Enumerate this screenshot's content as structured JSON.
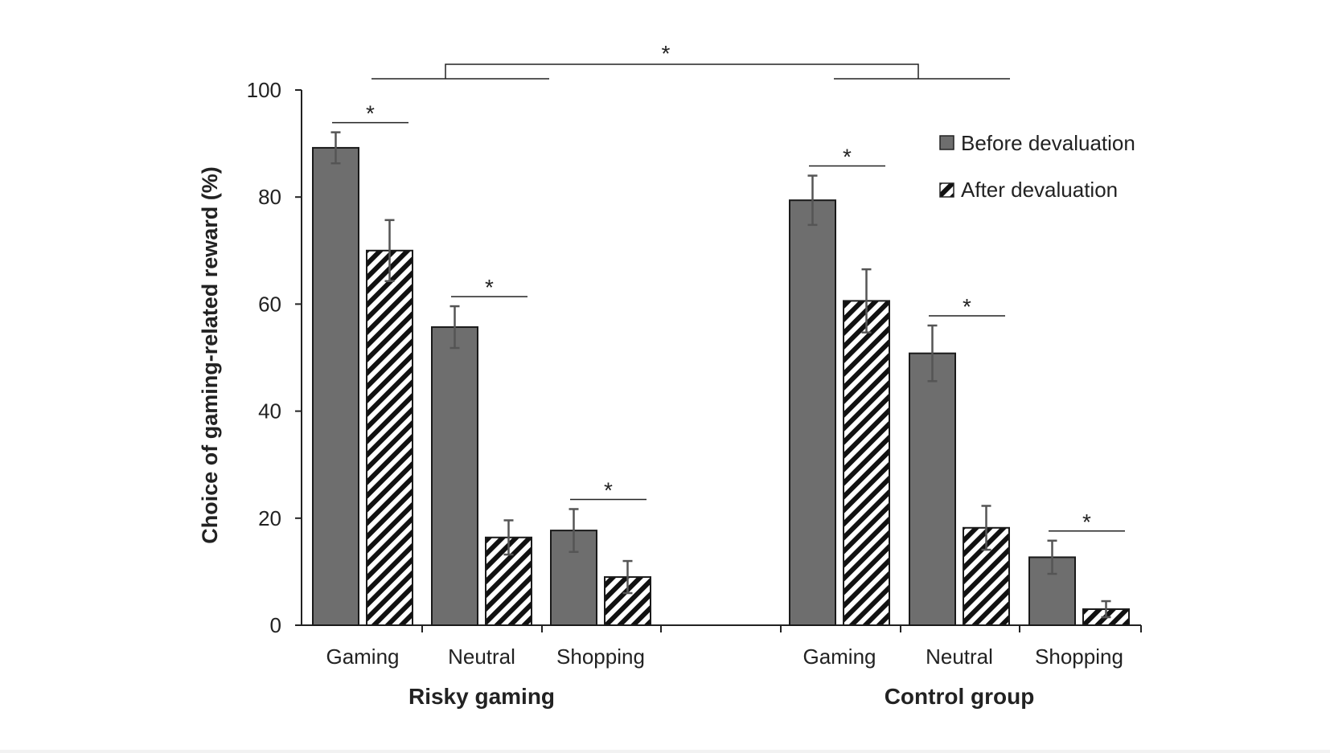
{
  "chart_data": {
    "type": "bar",
    "ylabel": "Choice of gaming-related reward (%)",
    "ylim": [
      0,
      100
    ],
    "yticks": [
      "0",
      "20",
      "40",
      "60",
      "80",
      "100"
    ],
    "categories": [
      "Gaming",
      "Neutral",
      "Shopping"
    ],
    "groups": [
      {
        "name": "Risky gaming",
        "series": [
          {
            "name": "Before devaluation",
            "values": [
              89.2,
              55.7,
              17.7
            ],
            "errors": [
              2.9,
              3.9,
              4.0
            ]
          },
          {
            "name": "After devaluation",
            "values": [
              70.0,
              16.4,
              9.0
            ],
            "errors": [
              5.7,
              3.2,
              3.0
            ]
          }
        ],
        "significance": [
          "*",
          "*",
          "*"
        ]
      },
      {
        "name": "Control group",
        "series": [
          {
            "name": "Before devaluation",
            "values": [
              79.4,
              50.8,
              12.7
            ],
            "errors": [
              4.6,
              5.2,
              3.1
            ]
          },
          {
            "name": "After devaluation",
            "values": [
              60.6,
              18.2,
              3.0
            ],
            "errors": [
              5.9,
              4.1,
              1.5
            ]
          }
        ],
        "significance": [
          "*",
          "*",
          "*"
        ]
      }
    ],
    "group_comparison": "*",
    "legend": {
      "position": "top-right",
      "items": [
        "Before devaluation",
        "After devaluation"
      ]
    },
    "colors": {
      "before": "#6e6e6e",
      "after_stripe": "#111111",
      "axis": "#222222",
      "error": "#555555"
    }
  }
}
